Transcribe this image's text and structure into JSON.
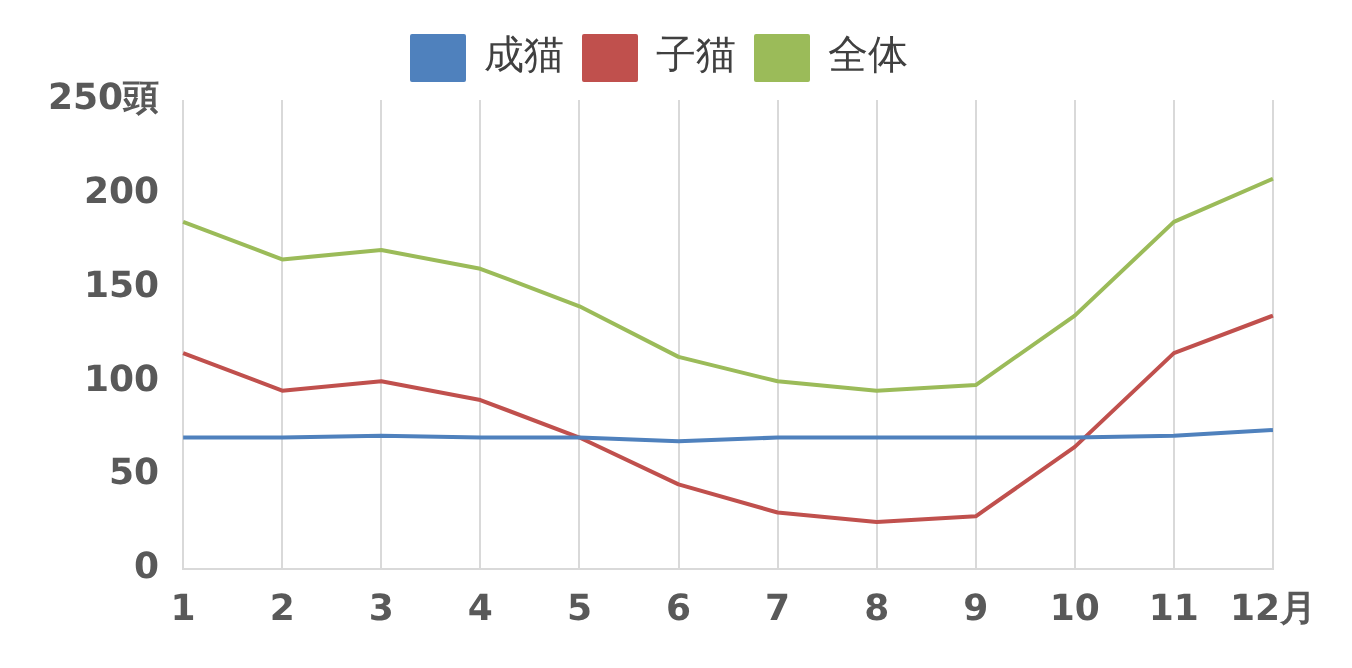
{
  "chart_data": {
    "type": "line",
    "categories": [
      "1",
      "2",
      "3",
      "4",
      "5",
      "6",
      "7",
      "8",
      "9",
      "10",
      "11",
      "12月"
    ],
    "series": [
      {
        "name": "成猫",
        "color": "#4f81bd",
        "values": [
          70,
          70,
          71,
          70,
          70,
          68,
          70,
          70,
          70,
          70,
          71,
          74
        ]
      },
      {
        "name": "子猫",
        "color": "#c0504d",
        "values": [
          115,
          95,
          100,
          90,
          70,
          45,
          30,
          25,
          28,
          65,
          115,
          135
        ]
      },
      {
        "name": "全体",
        "color": "#9bbb59",
        "values": [
          185,
          165,
          170,
          160,
          140,
          113,
          100,
          95,
          98,
          135,
          185,
          208
        ]
      }
    ],
    "ylim": [
      0,
      250
    ],
    "yticks": [
      0,
      50,
      100,
      150,
      200,
      {
        "value": 250,
        "label": "250頭"
      }
    ],
    "grid": "x",
    "legend": "top",
    "marker": "none",
    "line_style": "solid"
  }
}
